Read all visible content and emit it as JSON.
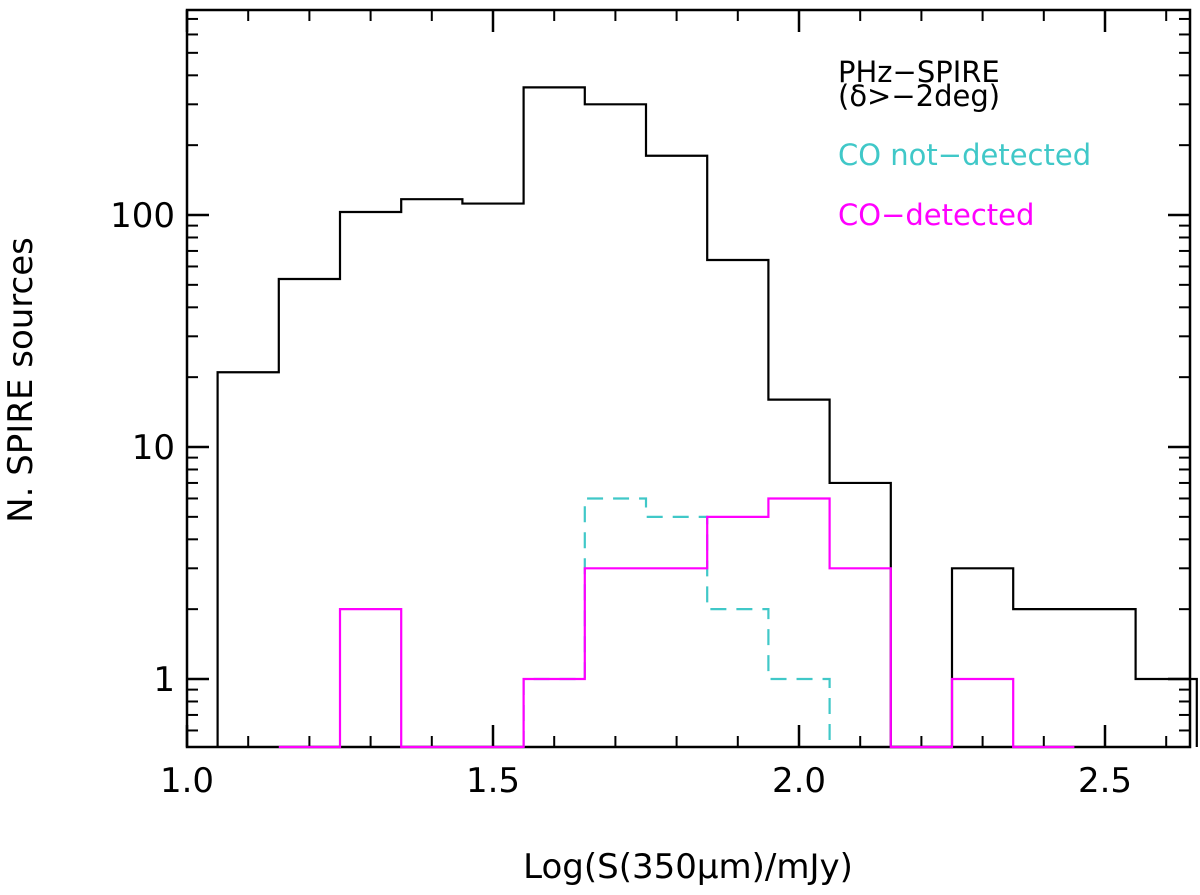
{
  "chart_data": {
    "type": "histogram",
    "xlabel": "Log(S(350μm)/mJy)",
    "ylabel": "N. SPIRE sources",
    "xlim": [
      1.0,
      2.65
    ],
    "ylim": [
      0.5,
      800
    ],
    "yscale": "log",
    "xticks": [
      {
        "value": 1.0,
        "label": "1.0"
      },
      {
        "value": 1.5,
        "label": "1.5"
      },
      {
        "value": 2.0,
        "label": "2.0"
      },
      {
        "value": 2.5,
        "label": "2.5"
      }
    ],
    "yticks": [
      {
        "value": 1,
        "label": "1"
      },
      {
        "value": 10,
        "label": "10"
      },
      {
        "value": 100,
        "label": "100"
      }
    ],
    "legend_lines": [
      {
        "text": "PHz−SPIRE",
        "color": "#000000"
      },
      {
        "text": "(δ>−2deg)",
        "color": "#000000"
      },
      {
        "text": "CO not−detected",
        "color": "#40c8c8"
      },
      {
        "text": "CO−detected",
        "color": "#ff00ff"
      }
    ],
    "legend_position": "top-right",
    "series": [
      {
        "color": "#000000",
        "dash": false,
        "bin_edges": [
          1.05,
          1.15,
          1.25,
          1.35,
          1.45,
          1.55,
          1.65,
          1.75,
          1.85,
          1.95,
          2.05,
          2.15,
          2.25,
          2.35,
          2.45,
          2.55,
          2.65
        ],
        "counts": [
          21,
          53,
          103,
          117,
          112,
          355,
          300,
          180,
          64,
          16,
          7,
          0,
          3,
          2,
          2,
          1
        ]
      },
      {
        "color": "#40c8c8",
        "dash": true,
        "bin_edges": [
          1.55,
          1.65,
          1.75,
          1.85,
          1.95,
          2.05
        ],
        "counts": [
          1,
          6,
          5,
          2,
          1
        ]
      },
      {
        "color": "#ff00ff",
        "dash": false,
        "bin_edges": [
          1.15,
          1.25,
          1.35,
          1.45,
          1.55,
          1.65,
          1.75,
          1.85,
          1.95,
          2.05,
          2.15,
          2.25,
          2.35,
          2.45
        ],
        "counts": [
          0,
          2,
          0,
          0,
          1,
          3,
          3,
          5,
          6,
          3,
          0,
          1,
          0
        ]
      }
    ]
  }
}
